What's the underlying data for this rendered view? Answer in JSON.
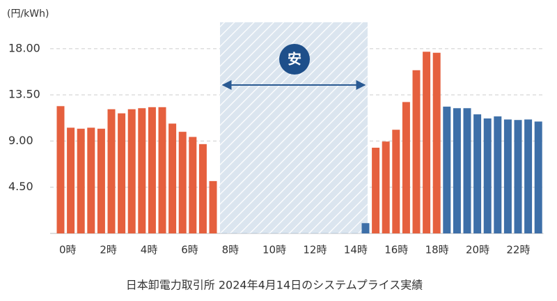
{
  "chart_data": {
    "type": "bar",
    "unit_label": "(円/kWh)",
    "badge": "安",
    "caption": "日本卸電力取引所 2024年4月14日のシステムプライス実績",
    "categories": [
      "0時",
      null,
      null,
      null,
      "2時",
      null,
      null,
      null,
      "4時",
      null,
      null,
      null,
      "6時",
      null,
      null,
      null,
      "8時",
      null,
      null,
      null,
      "10時",
      null,
      null,
      null,
      "12時",
      null,
      null,
      null,
      "14時",
      null,
      null,
      null,
      "16時",
      null,
      null,
      null,
      "18時",
      null,
      null,
      null,
      "20時",
      null,
      null,
      null,
      "22時",
      null,
      null,
      null
    ],
    "values": [
      12.4,
      10.3,
      10.2,
      10.3,
      10.2,
      12.1,
      11.7,
      12.1,
      12.2,
      12.3,
      12.3,
      10.7,
      9.9,
      9.4,
      8.7,
      5.1,
      0.01,
      0.01,
      0.01,
      0.01,
      0.01,
      0.01,
      0.01,
      0.01,
      0.01,
      0.01,
      0.01,
      0.01,
      0.01,
      0.01,
      1.0,
      8.35,
      8.95,
      10.1,
      12.8,
      15.9,
      17.7,
      17.6,
      12.35,
      12.2,
      12.2,
      11.6,
      11.2,
      11.4,
      11.1,
      11.05,
      11.1,
      10.9
    ],
    "colors": [
      "#e5603e",
      "#e5603e",
      "#e5603e",
      "#e5603e",
      "#e5603e",
      "#e5603e",
      "#e5603e",
      "#e5603e",
      "#e5603e",
      "#e5603e",
      "#e5603e",
      "#e5603e",
      "#e5603e",
      "#e5603e",
      "#e5603e",
      "#e5603e",
      "#3d6fa8",
      "#3d6fa8",
      "#3d6fa8",
      "#3d6fa8",
      "#3d6fa8",
      "#3d6fa8",
      "#3d6fa8",
      "#3d6fa8",
      "#3d6fa8",
      "#3d6fa8",
      "#3d6fa8",
      "#3d6fa8",
      "#3d6fa8",
      "#3d6fa8",
      "#3d6fa8",
      "#e5603e",
      "#e5603e",
      "#e5603e",
      "#e5603e",
      "#e5603e",
      "#e5603e",
      "#e5603e",
      "#3d6fa8",
      "#3d6fa8",
      "#3d6fa8",
      "#3d6fa8",
      "#3d6fa8",
      "#3d6fa8",
      "#3d6fa8",
      "#3d6fa8",
      "#3d6fa8",
      "#3d6fa8"
    ],
    "ylim": [
      0,
      20.5
    ],
    "yticks": [
      {
        "value": 4.5,
        "label": "4.50"
      },
      {
        "value": 9,
        "label": "9.00"
      },
      {
        "value": 13.5,
        "label": "13.50"
      },
      {
        "value": 18,
        "label": "18.00"
      }
    ],
    "grid": true
  }
}
